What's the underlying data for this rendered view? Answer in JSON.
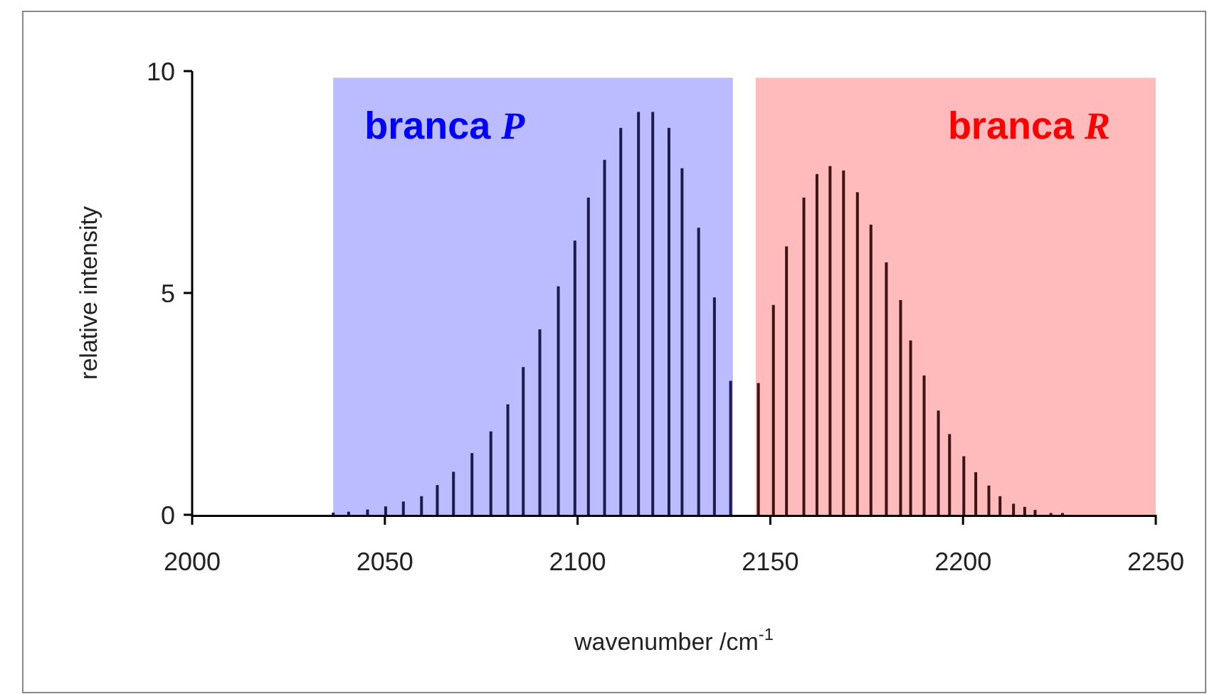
{
  "chart_data": {
    "type": "bar",
    "xlabel": "wavenumber /cm$^{-1}$",
    "ylabel": "relative intensity",
    "xlim": [
      2000,
      2250
    ],
    "xticks": [
      2000,
      2050,
      2100,
      2150,
      2200,
      2250
    ],
    "ylim": [
      0,
      10
    ],
    "yticks": [
      0,
      5,
      10
    ],
    "grid": false,
    "bands": [
      {
        "axis": "x",
        "from": 2036.6,
        "to": 2140.3,
        "label": "branca P",
        "color": "#bbbbff"
      },
      {
        "axis": "x",
        "from": 2146.2,
        "to": 2250,
        "label": "branca R",
        "color": "#ffbbbb"
      }
    ],
    "series": [
      {
        "color": "#1c1c4c",
        "x": [
          2036.6,
          2040.6,
          2045.5,
          2050.2,
          2054.8,
          2059.5,
          2063.6,
          2067.8,
          2072.6,
          2077.5,
          2081.9,
          2085.9,
          2090.2,
          2095.0,
          2099.3,
          2102.8,
          2107.0,
          2111.2,
          2115.8,
          2119.5,
          2123.7,
          2127.1,
          2131.4,
          2135.5,
          2139.7
        ],
        "values": [
          0.05,
          0.07,
          0.12,
          0.19,
          0.3,
          0.42,
          0.67,
          0.97,
          1.39,
          1.88,
          2.49,
          3.33,
          4.18,
          5.15,
          6.18,
          7.15,
          8.0,
          8.72,
          9.08,
          9.08,
          8.72,
          7.81,
          6.47,
          4.9,
          3.02
        ]
      },
      {
        "color": "#3c1414",
        "x": [
          2146.9,
          2150.8,
          2154.2,
          2158.7,
          2162.1,
          2165.5,
          2169.0,
          2172.6,
          2176.1,
          2180.1,
          2183.8,
          2186.4,
          2189.9,
          2193.6,
          2196.5,
          2200.2,
          2203.3,
          2206.7,
          2209.6,
          2213.1,
          2216.0,
          2218.7,
          2222.8,
          2225.8
        ],
        "values": [
          2.97,
          4.73,
          6.05,
          7.15,
          7.68,
          7.86,
          7.76,
          7.27,
          6.54,
          5.69,
          4.84,
          3.93,
          3.14,
          2.35,
          1.82,
          1.32,
          0.96,
          0.66,
          0.42,
          0.25,
          0.18,
          0.11,
          0.04,
          0.04
        ]
      }
    ]
  }
}
